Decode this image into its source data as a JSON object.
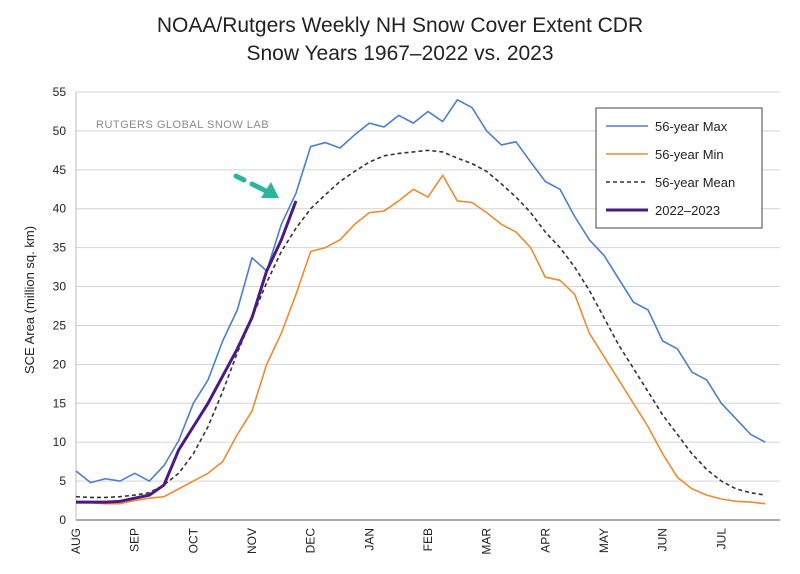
{
  "chart_data": {
    "type": "line",
    "title": "NOAA/Rutgers Weekly NH Snow Cover Extent CDR",
    "subtitle": "Snow Years 1967–2022 vs. 2023",
    "ylabel": "SCE Area (million sq. km)",
    "xlabel": "",
    "ylim": [
      0,
      55
    ],
    "yticks": [
      0,
      5,
      10,
      15,
      20,
      25,
      30,
      35,
      40,
      45,
      50,
      55
    ],
    "months": [
      "AUG",
      "SEP",
      "OCT",
      "NOV",
      "DEC",
      "JAN",
      "FEB",
      "MAR",
      "APR",
      "MAY",
      "JUN",
      "JUL"
    ],
    "grid": true,
    "legend_position": "top-right",
    "annotation": "RUTGERS GLOBAL SNOW LAB",
    "arrow_color": "#2bb59a",
    "series": [
      {
        "name": "56-year Max",
        "color": "#4a7fd0",
        "dash": "solid",
        "x": [
          0,
          0.25,
          0.5,
          0.75,
          1,
          1.25,
          1.5,
          1.75,
          2,
          2.25,
          2.5,
          2.75,
          3,
          3.25,
          3.5,
          3.75,
          4,
          4.25,
          4.5,
          4.75,
          5,
          5.25,
          5.5,
          5.75,
          6,
          6.25,
          6.5,
          6.75,
          7,
          7.25,
          7.5,
          7.75,
          8,
          8.25,
          8.5,
          8.75,
          9,
          9.25,
          9.5,
          9.75,
          10,
          10.25,
          10.5,
          10.75,
          11,
          11.25,
          11.5,
          11.75
        ],
        "values": [
          6.3,
          4.8,
          5.3,
          5.0,
          6.0,
          5.0,
          7.0,
          10.2,
          15.0,
          18.0,
          23.0,
          27.0,
          33.7,
          32.0,
          38.0,
          42.0,
          48.0,
          48.5,
          47.8,
          49.5,
          51.0,
          50.5,
          52.0,
          51.0,
          52.5,
          51.2,
          54.0,
          53.0,
          50.0,
          48.2,
          48.6,
          46.0,
          43.5,
          42.5,
          39.0,
          36.0,
          34.0,
          31.0,
          28.0,
          27.0,
          23.0,
          22.0,
          19.0,
          18.0,
          15.0,
          13.0,
          11.0,
          10.0
        ]
      },
      {
        "name": "56-year Min",
        "color": "#f08a30",
        "dash": "solid",
        "x": [
          0,
          0.25,
          0.5,
          0.75,
          1,
          1.25,
          1.5,
          1.75,
          2,
          2.25,
          2.5,
          2.75,
          3,
          3.25,
          3.5,
          3.75,
          4,
          4.25,
          4.5,
          4.75,
          5,
          5.25,
          5.5,
          5.75,
          6,
          6.25,
          6.5,
          6.75,
          7,
          7.25,
          7.5,
          7.75,
          8,
          8.25,
          8.5,
          8.75,
          9,
          9.25,
          9.5,
          9.75,
          10,
          10.25,
          10.5,
          10.75,
          11,
          11.25,
          11.5,
          11.75
        ],
        "values": [
          2.2,
          2.2,
          2.1,
          2.1,
          2.5,
          2.8,
          3.0,
          4.0,
          5.0,
          6.0,
          7.5,
          11.0,
          14.0,
          20.0,
          24.0,
          29.0,
          34.5,
          35.0,
          36.0,
          38.0,
          39.5,
          39.7,
          41.0,
          42.5,
          41.5,
          44.3,
          41.0,
          40.8,
          39.5,
          38.0,
          37.0,
          35.0,
          31.2,
          30.8,
          29.0,
          24.0,
          21.0,
          18.0,
          15.0,
          12.0,
          8.5,
          5.5,
          4.0,
          3.2,
          2.7,
          2.4,
          2.3,
          2.1
        ]
      },
      {
        "name": "56-year Mean",
        "color": "#333333",
        "dash": "dashed",
        "x": [
          0,
          0.25,
          0.5,
          0.75,
          1,
          1.25,
          1.5,
          1.75,
          2,
          2.25,
          2.5,
          2.75,
          3,
          3.25,
          3.5,
          3.75,
          4,
          4.25,
          4.5,
          4.75,
          5,
          5.25,
          5.5,
          5.75,
          6,
          6.25,
          6.5,
          6.75,
          7,
          7.25,
          7.5,
          7.75,
          8,
          8.25,
          8.5,
          8.75,
          9,
          9.25,
          9.5,
          9.75,
          10,
          10.25,
          10.5,
          10.75,
          11,
          11.25,
          11.5,
          11.75
        ],
        "values": [
          3.0,
          2.9,
          2.9,
          3.0,
          3.2,
          3.5,
          4.5,
          6.0,
          8.5,
          12.0,
          16.5,
          21.5,
          26.0,
          30.5,
          34.5,
          37.5,
          40.0,
          41.8,
          43.5,
          44.8,
          46.0,
          46.8,
          47.1,
          47.3,
          47.5,
          47.3,
          46.5,
          45.8,
          44.8,
          43.2,
          41.5,
          39.5,
          37.0,
          35.0,
          32.5,
          29.5,
          26.0,
          22.5,
          19.5,
          16.5,
          13.5,
          11.0,
          8.5,
          6.5,
          5.0,
          4.0,
          3.5,
          3.2
        ]
      },
      {
        "name": "2022–2023",
        "color": "#4b1a82",
        "dash": "solid",
        "x": [
          0,
          0.25,
          0.5,
          0.75,
          1,
          1.25,
          1.5,
          1.75,
          2,
          2.25,
          2.5,
          2.75,
          3,
          3.25,
          3.5,
          3.75
        ],
        "values": [
          2.3,
          2.3,
          2.3,
          2.4,
          2.8,
          3.2,
          4.5,
          9.0,
          12.0,
          15.0,
          18.5,
          22.0,
          26.0,
          32.0,
          36.0,
          41.0
        ]
      }
    ]
  }
}
